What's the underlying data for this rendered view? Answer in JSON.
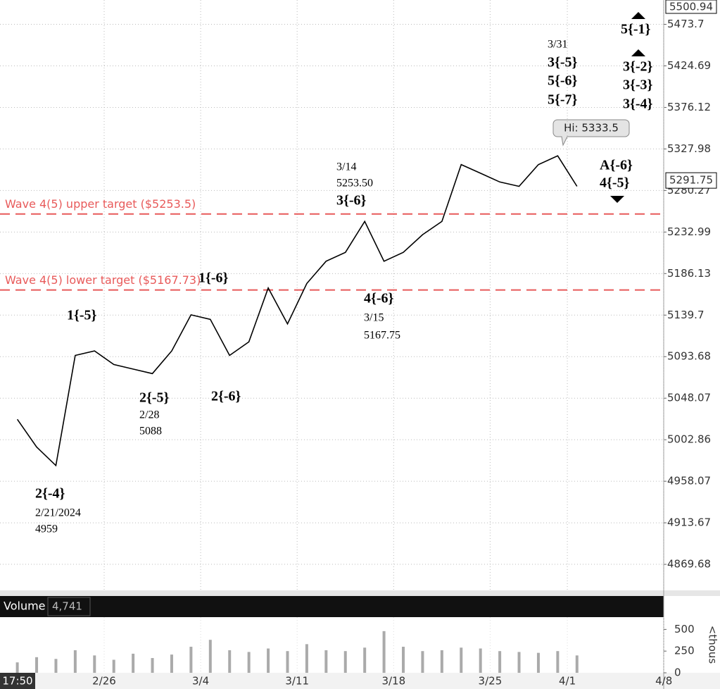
{
  "chart_data": {
    "type": "line",
    "x": [
      "2/16",
      "2/20",
      "2/21",
      "2/22",
      "2/23",
      "2/26",
      "2/27",
      "2/28",
      "2/29",
      "3/1",
      "3/4",
      "3/5",
      "3/6",
      "3/7",
      "3/8",
      "3/11",
      "3/12",
      "3/13",
      "3/14",
      "3/15",
      "3/18",
      "3/19",
      "3/20",
      "3/21",
      "3/22",
      "3/25",
      "3/26",
      "3/27",
      "3/28",
      "4/1"
    ],
    "values": [
      5025,
      4995,
      4975,
      5095,
      5100,
      5085,
      5080,
      5075,
      5100,
      5140,
      5135,
      5095,
      5110,
      5170,
      5130,
      5175,
      5200,
      5210,
      5245,
      5200,
      5210,
      5230,
      5245,
      5310,
      5300,
      5290,
      5285,
      5310,
      5320,
      5285
    ],
    "color": "#000000",
    "ylim": [
      4842.3,
      5500.94
    ],
    "yticks": [
      5473.7,
      5424.69,
      5376.12,
      5327.98,
      5280.27,
      5232.99,
      5186.13,
      5139.7,
      5093.68,
      5048.07,
      5002.86,
      4958.07,
      4913.67,
      4869.68
    ],
    "log_scale": true,
    "grid": true,
    "xticks": [
      "2/26",
      "3/4",
      "3/11",
      "3/18",
      "3/25",
      "4/1",
      "4/8"
    ],
    "time_label": "17:50",
    "last_price": 5291.75,
    "high_label": "Hi: 5333.5",
    "hlines": [
      {
        "label": "Wave 4(5) upper target ($5253.5)",
        "value": 5253.5,
        "color": "#e85a5a"
      },
      {
        "label": "Wave 4(5) lower target ($5167.73)",
        "value": 5167.73,
        "color": "#e85a5a"
      }
    ],
    "annotations": [
      [
        "2{-4}",
        "2/21/2024",
        "4959"
      ],
      [
        "1{-5}"
      ],
      [
        "2{-5}",
        "2/28",
        "5088"
      ],
      [
        "2{-6}"
      ],
      [
        "1{-6}"
      ],
      [
        "3/14",
        "5253.50",
        "3{-6}"
      ],
      [
        "4{-6}",
        "3/15",
        "5167.75"
      ],
      [
        "3/31",
        "3{-5}",
        "5{-6}",
        "5{-7}"
      ],
      [
        "5{-1}"
      ],
      [
        "3{-2}",
        "3{-3}",
        "3{-4}"
      ],
      [
        "A{-6}",
        "4{-5}"
      ]
    ],
    "volume": {
      "label": "Volume",
      "current": "4,741",
      "values": [
        120,
        180,
        160,
        260,
        200,
        150,
        220,
        170,
        210,
        300,
        380,
        260,
        240,
        280,
        250,
        330,
        260,
        250,
        290,
        480,
        300,
        250,
        260,
        290,
        280,
        250,
        240,
        230,
        250,
        200
      ],
      "color": "#aaaaaa",
      "ylim": [
        0,
        560
      ],
      "yticks": [
        500,
        250,
        0
      ],
      "unit": "<thous"
    }
  }
}
